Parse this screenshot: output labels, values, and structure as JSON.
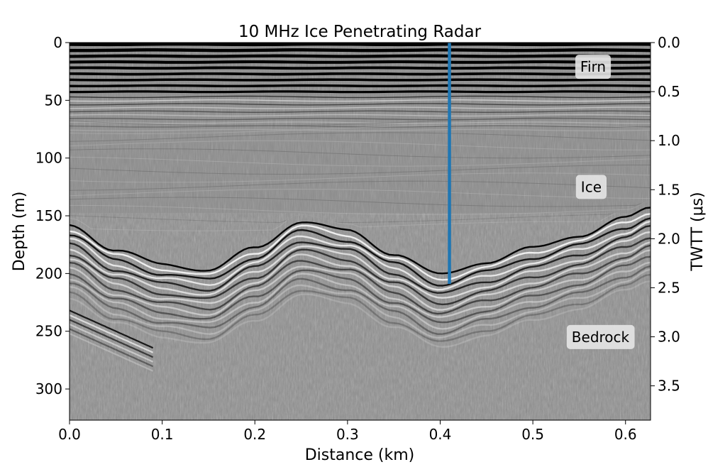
{
  "chart_data": {
    "type": "heatmap",
    "title": "10 MHz Ice Penetrating Radar",
    "xlabel": "Distance (km)",
    "ylabel": "Depth (m)",
    "y2label": "TWTT (μs)",
    "xlim": [
      0.0,
      0.627
    ],
    "ylim": [
      0,
      327
    ],
    "y2lim": [
      0.0,
      3.85
    ],
    "y_inverted": true,
    "xticks": [
      0.0,
      0.1,
      0.2,
      0.3,
      0.4,
      0.5,
      0.6
    ],
    "xtick_labels": [
      "0.0",
      "0.1",
      "0.2",
      "0.3",
      "0.4",
      "0.5",
      "0.6"
    ],
    "yticks": [
      0,
      50,
      100,
      150,
      200,
      250,
      300
    ],
    "ytick_labels": [
      "0",
      "50",
      "100",
      "150",
      "200",
      "250",
      "300"
    ],
    "y2ticks": [
      0.0,
      0.5,
      1.0,
      1.5,
      2.0,
      2.5,
      3.0,
      3.5
    ],
    "y2tick_labels": [
      "0.0",
      "0.5",
      "1.0",
      "1.5",
      "2.0",
      "2.5",
      "3.0",
      "3.5"
    ],
    "colormap": "grayscale",
    "grid": false,
    "vertical_marker": {
      "x": 0.41,
      "y_from": 0,
      "y_to": 209,
      "color": "#1f77b4"
    },
    "annotations": [
      {
        "text": "Firn",
        "x": 0.565,
        "y": 21
      },
      {
        "text": "Ice",
        "x": 0.563,
        "y": 125
      },
      {
        "text": "Bedrock",
        "x": 0.573,
        "y": 255
      }
    ],
    "bed_interface": {
      "x": [
        0.0,
        0.05,
        0.1,
        0.15,
        0.2,
        0.25,
        0.3,
        0.35,
        0.4,
        0.45,
        0.5,
        0.55,
        0.6,
        0.627
      ],
      "depth": [
        158,
        180,
        192,
        197,
        178,
        155,
        163,
        183,
        201,
        190,
        178,
        167,
        152,
        143
      ]
    }
  }
}
